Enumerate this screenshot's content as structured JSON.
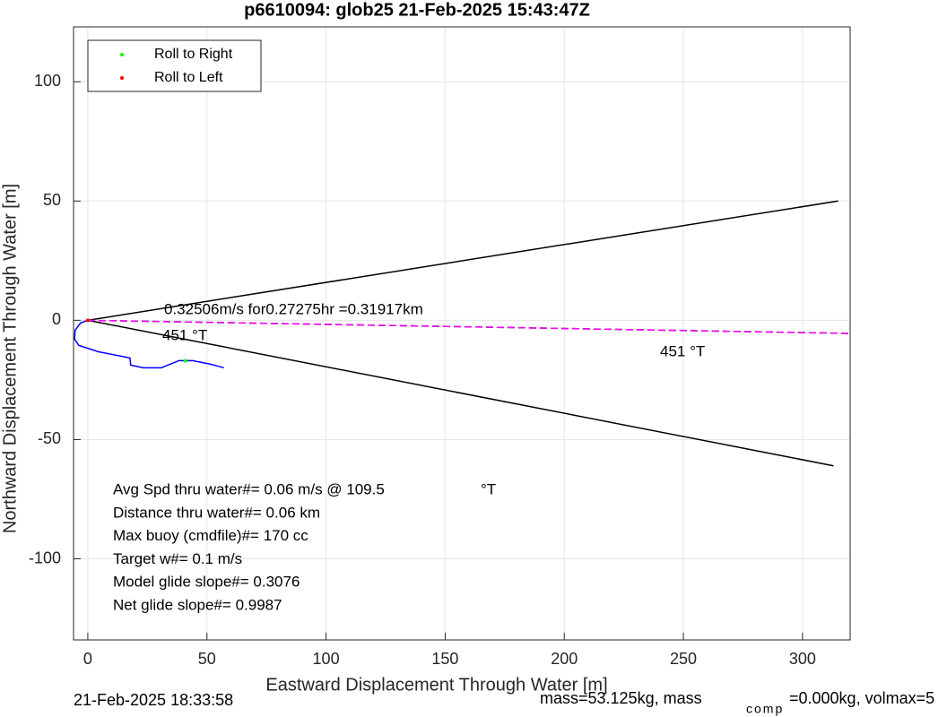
{
  "chart_data": {
    "type": "line",
    "title": "p6610094: glob25 21-Feb-2025 15:43:47Z",
    "xlabel": "Eastward Displacement Through Water [m]",
    "ylabel": "Northward Displacement Through Water [m]",
    "xlim": [
      -6,
      320
    ],
    "ylim": [
      -134,
      123
    ],
    "xticks": [
      0,
      50,
      100,
      150,
      200,
      250,
      300
    ],
    "yticks": [
      -100,
      -50,
      0,
      50,
      100
    ],
    "grid": true,
    "legend": "northwest",
    "series": [
      {
        "name": "Roll to Right",
        "color": "#00ff00",
        "x": [
          41
        ],
        "values": [
          -17
        ]
      },
      {
        "name": "Roll to Left",
        "color": "#ff0000",
        "x": [
          0
        ],
        "values": [
          0
        ]
      }
    ],
    "lines": [
      {
        "color": "#000000",
        "dash": false,
        "x": [
          0,
          315
        ],
        "values": [
          0,
          50
        ]
      },
      {
        "color": "#000000",
        "dash": false,
        "x": [
          0,
          313
        ],
        "values": [
          0,
          -61
        ]
      },
      {
        "color": "#000000",
        "dash": true,
        "x": [
          0,
          320
        ],
        "values": [
          0,
          -5.5
        ]
      },
      {
        "color": "#ff00ff",
        "dash": true,
        "x": [
          0,
          320
        ],
        "values": [
          0,
          -5.5
        ]
      },
      {
        "color": "#0000ff",
        "dash": false,
        "x": [
          0,
          -3,
          -5.3,
          -5.6,
          -3.8,
          4.5,
          15.8,
          17.7,
          18,
          23.3,
          30.8,
          34.6,
          38.3,
          44,
          51.5,
          57.1
        ],
        "values": [
          0,
          -1.1,
          -4.1,
          -7.9,
          -10.5,
          -13.2,
          -15.4,
          -15.8,
          -18.8,
          -19.9,
          -19.9,
          -18.4,
          -16.9,
          -16.9,
          -18.4,
          -19.9
        ]
      }
    ],
    "annotations": [
      "0.32506m/s for0.27275hr =0.31917km",
      "451 °T",
      "451 °T"
    ],
    "stats": [
      "Avg Spd thru water#=  0.06 m/s @ 109.5",
      "Distance thru water#=  0.06 km",
      "Max buoy (cmdfile)#= 170 cc",
      "Target w#= 0.1 m/s",
      "Model glide slope#= 0.3076",
      "Net glide slope#= 0.9987"
    ],
    "stats_unit": "°T",
    "footer": {
      "date": "21-Feb-2025 18:33:58",
      "mass": "mass=53.125kg, mass",
      "sub": "comp",
      "rest": "=0.000kg, volmax=5"
    }
  }
}
